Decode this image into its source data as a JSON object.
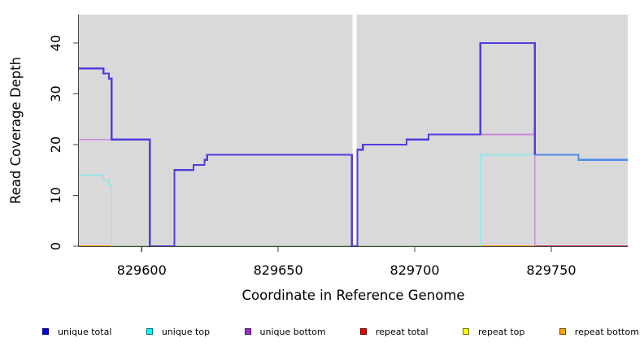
{
  "chart_data": {
    "type": "line",
    "title": "",
    "xlabel": "Coordinate in Reference Genome",
    "ylabel": "Read Coverage Depth",
    "xlim": [
      829577,
      829778
    ],
    "ylim": [
      0,
      45.6
    ],
    "grid": false,
    "legend_position": "bottom",
    "panel_bg": "#d9d9d9",
    "axis_color": "#444444",
    "missing_data_gap_x": [
      829677.2,
      829678.7
    ],
    "xticks": [
      {
        "value": 829600,
        "label": "829600"
      },
      {
        "value": 829650,
        "label": "829650"
      },
      {
        "value": 829700,
        "label": "829700"
      },
      {
        "value": 829750,
        "label": "829750"
      }
    ],
    "yticks": [
      {
        "value": 0,
        "label": "0"
      },
      {
        "value": 10,
        "label": "10"
      },
      {
        "value": 20,
        "label": "20"
      },
      {
        "value": 30,
        "label": "30"
      },
      {
        "value": 40,
        "label": "40"
      }
    ],
    "series": [
      {
        "name": "zero-line-green",
        "color": "#92cb92",
        "width": 1.8,
        "points": [
          [
            829589,
            0
          ],
          [
            829724,
            0
          ]
        ]
      },
      {
        "name": "repeat-bottom-left",
        "color": "#ff9d21",
        "width": 2,
        "points": [
          [
            829577,
            0
          ],
          [
            829589,
            0
          ]
        ]
      },
      {
        "name": "repeat-bottom-mid",
        "color": "#ff9d21",
        "width": 2,
        "points": [
          [
            829724,
            0
          ],
          [
            829744,
            0
          ]
        ]
      },
      {
        "name": "repeat-total-right",
        "color": "#cb3d63",
        "width": 2,
        "points": [
          [
            829744,
            0
          ],
          [
            829778,
            0
          ]
        ]
      },
      {
        "name": "unique-bottom-left",
        "color": "#cc8add",
        "width": 1.8,
        "points": [
          [
            829577,
            21
          ],
          [
            829603,
            21
          ]
        ]
      },
      {
        "name": "unique-top-left",
        "color": "#92e7e7",
        "width": 1.8,
        "points": [
          [
            829577,
            14
          ],
          [
            829586,
            14
          ],
          [
            829586,
            13
          ],
          [
            829588,
            13
          ],
          [
            829588,
            12
          ],
          [
            829589,
            12
          ],
          [
            829589,
            0
          ]
        ]
      },
      {
        "name": "unique-top-right",
        "color": "#92e7e7",
        "width": 1.8,
        "points": [
          [
            829724,
            0
          ],
          [
            829724,
            18
          ],
          [
            829745,
            18
          ]
        ]
      },
      {
        "name": "unique-total-right",
        "color": "#4d8ce8",
        "width": 2.2,
        "points": [
          [
            829744,
            18
          ],
          [
            829760,
            18
          ],
          [
            829760,
            17
          ],
          [
            829778,
            17
          ]
        ]
      },
      {
        "name": "unique-bottom-right",
        "color": "#cc8add",
        "width": 1.8,
        "points": [
          [
            829724,
            22
          ],
          [
            829744,
            22
          ],
          [
            829744,
            0
          ]
        ]
      },
      {
        "name": "unique-total",
        "color": "#4f3edd",
        "width": 2.2,
        "points": [
          [
            829577,
            35
          ],
          [
            829586,
            35
          ],
          [
            829586,
            34
          ],
          [
            829588,
            34
          ],
          [
            829588,
            33
          ],
          [
            829589,
            33
          ],
          [
            829589,
            21
          ],
          [
            829603,
            21
          ],
          [
            829603,
            0
          ],
          [
            829612,
            0
          ],
          [
            829612,
            15
          ],
          [
            829619,
            15
          ],
          [
            829619,
            16
          ],
          [
            829623,
            16
          ],
          [
            829623,
            17
          ],
          [
            829624,
            17
          ],
          [
            829624,
            18
          ],
          [
            829677,
            18
          ],
          [
            829677,
            0
          ],
          [
            829679,
            0
          ],
          [
            829679,
            19
          ],
          [
            829681,
            19
          ],
          [
            829681,
            20
          ],
          [
            829697,
            20
          ],
          [
            829697,
            21
          ],
          [
            829705,
            21
          ],
          [
            829705,
            22
          ],
          [
            829724,
            22
          ],
          [
            829724,
            40
          ],
          [
            829744,
            40
          ],
          [
            829744,
            18
          ]
        ]
      }
    ],
    "legend": {
      "items": [
        {
          "label": "unique total",
          "color": "#0000ee"
        },
        {
          "label": "unique top",
          "color": "#00ffff"
        },
        {
          "label": "unique bottom",
          "color": "#9933cc"
        },
        {
          "label": "repeat total",
          "color": "#ee0000"
        },
        {
          "label": "repeat top",
          "color": "#ffff00"
        },
        {
          "label": "repeat bottom",
          "color": "#ffa500"
        }
      ]
    }
  }
}
